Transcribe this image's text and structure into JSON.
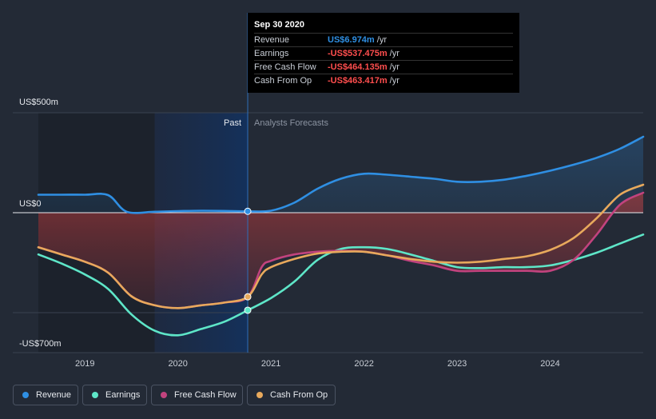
{
  "chart_data": {
    "type": "line",
    "x_unit": "year",
    "ylabel_ticks": [
      "US$500m",
      "US$0",
      "-US$700m"
    ],
    "y_ticks": [
      500,
      0,
      -700
    ],
    "ylim": [
      -700,
      500
    ],
    "xlim": [
      2018.5,
      2025.0
    ],
    "x_ticks": [
      2019,
      2020,
      2021,
      2022,
      2023,
      2024
    ],
    "x_tick_labels": [
      "2019",
      "2020",
      "2021",
      "2022",
      "2023",
      "2024"
    ],
    "divider_x": 2020.75,
    "region_labels": {
      "past": "Past",
      "forecast": "Analysts Forecasts"
    },
    "grid": "horizontal",
    "legend_position": "bottom",
    "series": [
      {
        "name": "Revenue",
        "color": "#2f8fe3",
        "x": [
          2018.5,
          2018.75,
          2019.0,
          2019.25,
          2019.45,
          2019.75,
          2020.0,
          2020.25,
          2020.5,
          2020.75,
          2021.0,
          2021.25,
          2021.5,
          2021.75,
          2022.0,
          2022.25,
          2022.5,
          2022.75,
          2023.0,
          2023.25,
          2023.5,
          2023.75,
          2024.0,
          2024.25,
          2024.5,
          2024.75,
          2025.0
        ],
        "values": [
          90,
          90,
          90,
          88,
          5,
          5,
          8,
          10,
          9,
          7,
          10,
          50,
          120,
          170,
          195,
          190,
          180,
          170,
          155,
          155,
          165,
          185,
          210,
          240,
          275,
          320,
          380
        ]
      },
      {
        "name": "Earnings",
        "color": "#5ee6c8",
        "x": [
          2018.5,
          2018.75,
          2019.0,
          2019.25,
          2019.5,
          2019.75,
          2020.0,
          2020.25,
          2020.5,
          2020.75,
          2021.0,
          2021.25,
          2021.5,
          2021.75,
          2022.0,
          2022.25,
          2022.5,
          2022.75,
          2023.0,
          2023.25,
          2023.5,
          2023.75,
          2024.0,
          2024.25,
          2024.5,
          2024.75,
          2025.0
        ],
        "values": [
          -230,
          -280,
          -340,
          -420,
          -560,
          -650,
          -675,
          -640,
          -600,
          -537,
          -470,
          -380,
          -260,
          -200,
          -190,
          -200,
          -230,
          -265,
          -300,
          -305,
          -300,
          -300,
          -290,
          -260,
          -220,
          -170,
          -120
        ]
      },
      {
        "name": "Free Cash Flow",
        "color": "#c2437e",
        "x": [
          2018.5,
          2018.75,
          2019.0,
          2019.25,
          2019.5,
          2019.75,
          2020.0,
          2020.25,
          2020.5,
          2020.75,
          2020.9,
          2021.0,
          2021.25,
          2021.5,
          2021.75,
          2022.0,
          2022.25,
          2022.5,
          2022.75,
          2023.0,
          2023.25,
          2023.5,
          2023.75,
          2024.0,
          2024.25,
          2024.5,
          2024.75,
          2025.0
        ],
        "values": [
          -190,
          -230,
          -270,
          -330,
          -460,
          -510,
          -525,
          -510,
          -495,
          -464,
          -300,
          -265,
          -230,
          -215,
          -210,
          -215,
          -235,
          -265,
          -290,
          -320,
          -320,
          -320,
          -320,
          -320,
          -260,
          -120,
          40,
          100
        ]
      },
      {
        "name": "Cash From Op",
        "color": "#e8a95c",
        "x": [
          2018.5,
          2018.75,
          2019.0,
          2019.25,
          2019.5,
          2019.75,
          2020.0,
          2020.25,
          2020.5,
          2020.75,
          2020.9,
          2021.0,
          2021.25,
          2021.5,
          2021.75,
          2022.0,
          2022.25,
          2022.5,
          2022.75,
          2023.0,
          2023.25,
          2023.5,
          2023.75,
          2024.0,
          2024.25,
          2024.5,
          2024.75,
          2025.0
        ],
        "values": [
          -190,
          -230,
          -270,
          -330,
          -460,
          -510,
          -525,
          -510,
          -495,
          -463,
          -340,
          -300,
          -255,
          -225,
          -215,
          -215,
          -235,
          -255,
          -270,
          -275,
          -270,
          -255,
          -240,
          -205,
          -140,
          -30,
          90,
          140
        ]
      }
    ]
  },
  "tooltip": {
    "date": "Sep 30 2020",
    "unit": "/yr",
    "rows": [
      {
        "label": "Revenue",
        "value": "US$6.974m",
        "tone": "pos"
      },
      {
        "label": "Earnings",
        "value": "-US$537.475m",
        "tone": "neg"
      },
      {
        "label": "Free Cash Flow",
        "value": "-US$464.135m",
        "tone": "neg"
      },
      {
        "label": "Cash From Op",
        "value": "-US$463.417m",
        "tone": "neg"
      }
    ]
  },
  "legend": [
    {
      "label": "Revenue",
      "color": "#2f8fe3"
    },
    {
      "label": "Earnings",
      "color": "#5ee6c8"
    },
    {
      "label": "Free Cash Flow",
      "color": "#c2437e"
    },
    {
      "label": "Cash From Op",
      "color": "#e8a95c"
    }
  ]
}
